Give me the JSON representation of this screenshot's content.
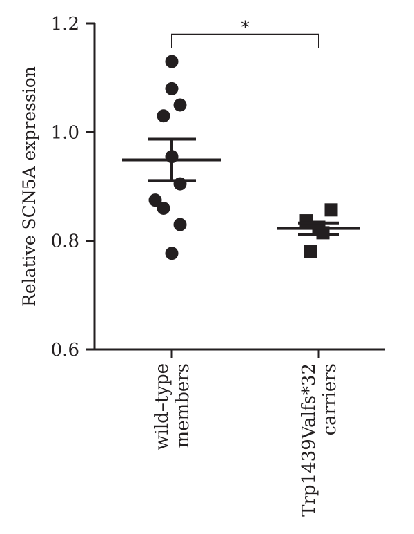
{
  "chart_data": {
    "type": "scatter",
    "title": "",
    "xlabel": "",
    "ylabel": "Relative SCN5A expression",
    "ylim": [
      0.6,
      1.2
    ],
    "yticks": [
      "0.6",
      "0.8",
      "1.0",
      "1.2"
    ],
    "grid": false,
    "categories": [
      {
        "line1": "wild–type",
        "line2": "members"
      },
      {
        "line1": "Trp1439Valfs*32",
        "line2": "carriers"
      }
    ],
    "series": [
      {
        "category_index": 0,
        "marker": "circle",
        "values": [
          1.13,
          1.08,
          1.05,
          1.03,
          0.955,
          0.905,
          0.875,
          0.86,
          0.83,
          0.777
        ],
        "offsets": [
          0,
          0,
          1,
          -1,
          0,
          1,
          -2,
          -1,
          1,
          0
        ],
        "mean": 0.949,
        "sem_upper": 0.987,
        "sem_lower": 0.911
      },
      {
        "category_index": 1,
        "marker": "square",
        "values": [
          0.857,
          0.837,
          0.825,
          0.815,
          0.78
        ],
        "offsets": [
          1.5,
          -1.5,
          0,
          0.5,
          -1
        ],
        "mean": 0.823,
        "sem_upper": 0.833,
        "sem_lower": 0.812
      }
    ],
    "significance": {
      "label": "*",
      "from_category": 0,
      "to_category": 1,
      "y": 1.18,
      "drop": 1.155
    }
  },
  "colors": {
    "ink": "#231f20"
  }
}
